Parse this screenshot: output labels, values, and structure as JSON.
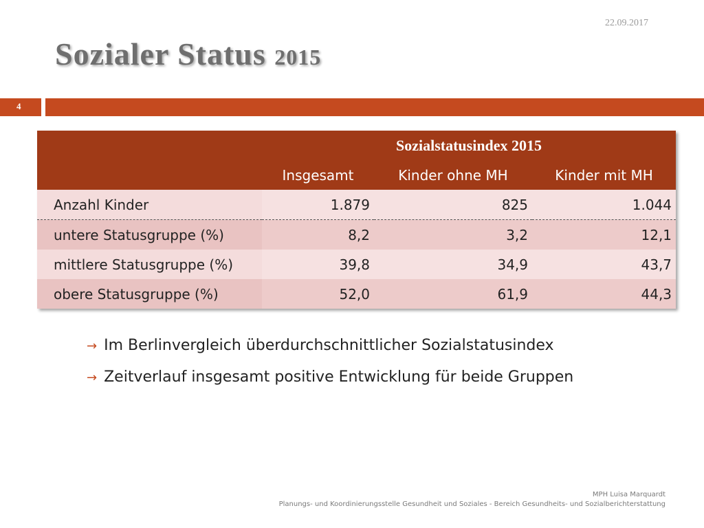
{
  "header": {
    "date": "22.09.2017",
    "title": "Sozialer Status",
    "title_year": "2015",
    "slide_number": "4"
  },
  "table": {
    "group_header": "Sozialstatusindex 2015",
    "columns": [
      "Insgesamt",
      "Kinder ohne MH",
      "Kinder mit MH"
    ],
    "rows": [
      {
        "label": "Anzahl Kinder",
        "values": [
          "1.879",
          "825",
          "1.044"
        ]
      },
      {
        "label": "untere Statusgruppe (%)",
        "values": [
          "8,2",
          "3,2",
          "12,1"
        ]
      },
      {
        "label": "mittlere Statusgruppe (%)",
        "values": [
          "39,8",
          "34,9",
          "43,7"
        ]
      },
      {
        "label": "obere Statusgruppe (%)",
        "values": [
          "52,0",
          "61,9",
          "44,3"
        ]
      }
    ]
  },
  "bullets": [
    "Im Berlinvergleich überdurchschnittlicher Sozialstatusindex",
    "Zeitverlauf insgesamt positive Entwicklung für beide Gruppen"
  ],
  "footer": {
    "author": "MPH Luisa Marquardt",
    "organization": "Planungs- und Koordinierungsstelle Gesundheit und Soziales  - Bereich Gesundheits- und Sozialberichterstattung"
  }
}
